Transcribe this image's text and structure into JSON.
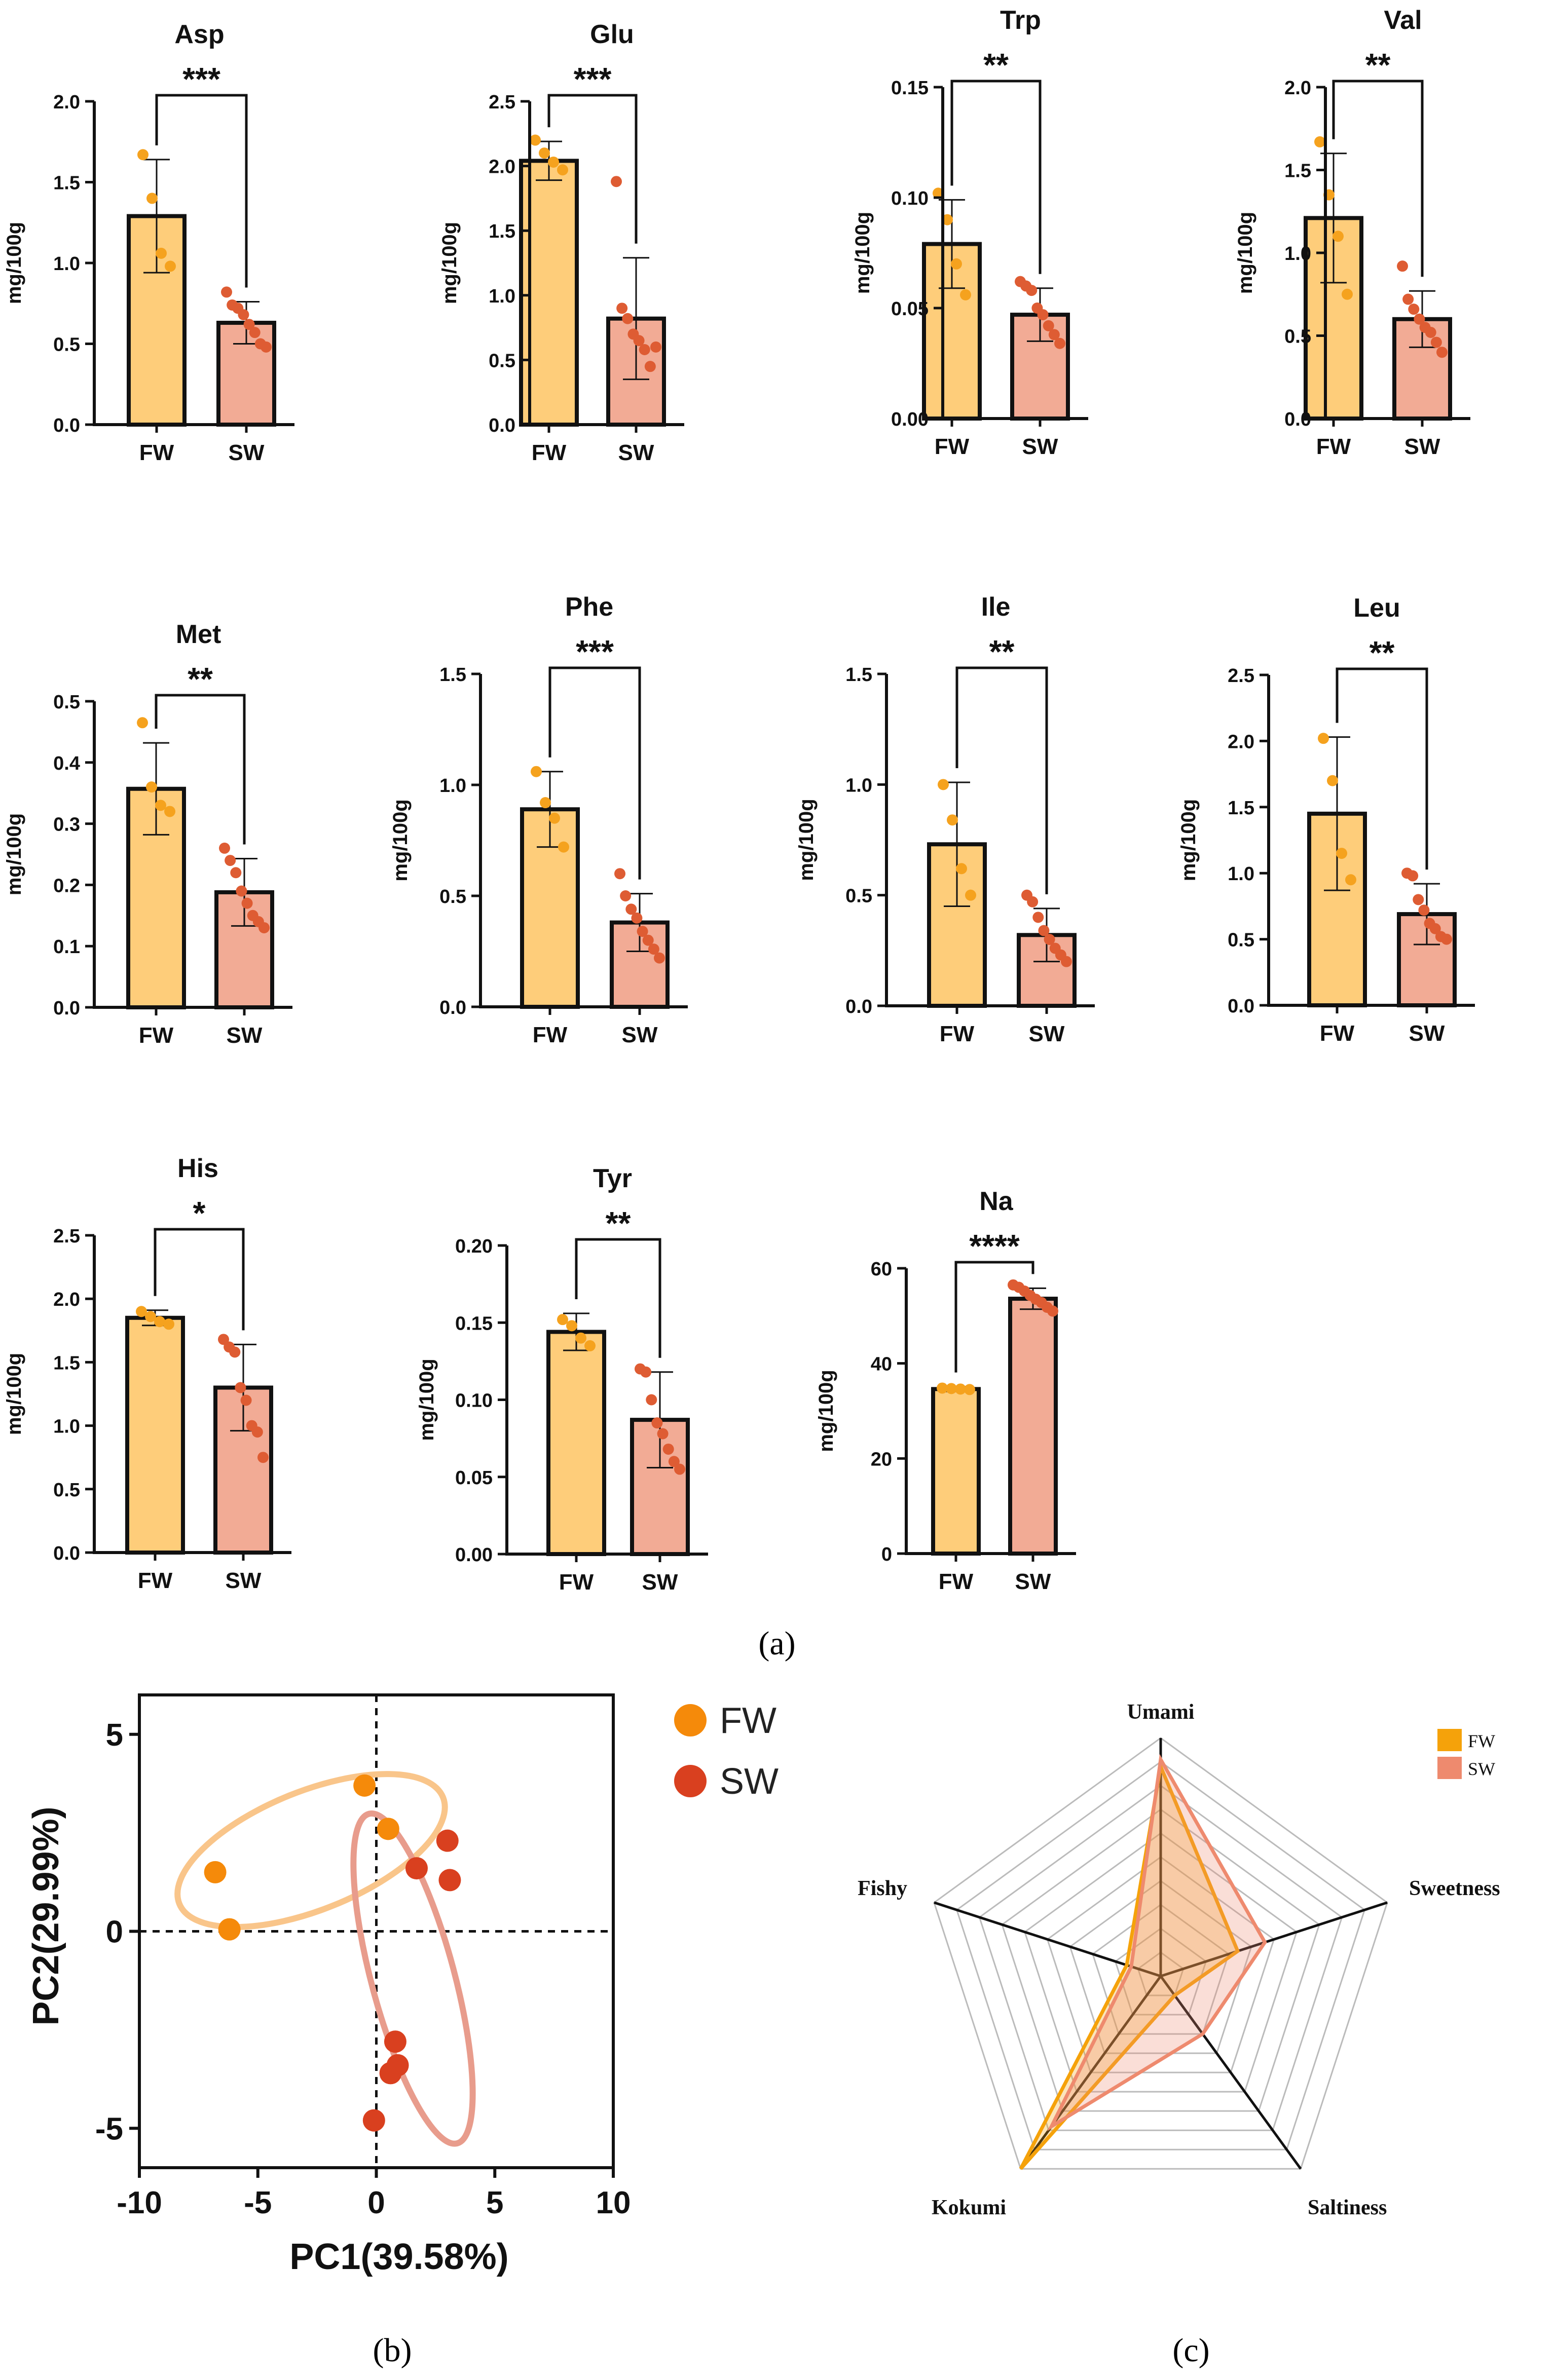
{
  "colors": {
    "fw_bar": "#FECD7A",
    "sw_bar": "#F2AB95",
    "fw_dot": "#F5A21E",
    "sw_dot": "#DE5C33",
    "pca_fw": "#F58A0A",
    "pca_sw": "#D9401F",
    "ellipse_fw": "#F9C58A",
    "ellipse_sw": "#E89C8C",
    "radar_fw": "#F5A20A",
    "radar_sw": "#EE8A6E",
    "axis": "#111111"
  },
  "chart_data": [
    {
      "type": "bar",
      "title": "Asp",
      "ylabel": "mg/100g",
      "categories": [
        "FW",
        "SW"
      ],
      "means": [
        1.29,
        0.63
      ],
      "sd": [
        0.35,
        0.13
      ],
      "ylim": [
        0,
        2.0
      ],
      "yticks": [
        "0.0",
        "0.5",
        "1.0",
        "1.5",
        "2.0"
      ],
      "ytick_values": [
        0,
        0.5,
        1.0,
        1.5,
        2.0
      ],
      "significance": "***",
      "points": [
        [
          1.67,
          1.4,
          1.06,
          0.98
        ],
        [
          0.82,
          0.74,
          0.72,
          0.68,
          0.62,
          0.57,
          0.5,
          0.48
        ]
      ]
    },
    {
      "type": "bar",
      "title": "Glu",
      "ylabel": "mg/100g",
      "categories": [
        "FW",
        "SW"
      ],
      "means": [
        2.04,
        0.82
      ],
      "sd": [
        0.15,
        0.47
      ],
      "ylim": [
        0,
        2.5
      ],
      "yticks": [
        "0.0",
        "0.5",
        "1.0",
        "1.5",
        "2.0",
        "2.5"
      ],
      "ytick_values": [
        0,
        0.5,
        1.0,
        1.5,
        2.0,
        2.5
      ],
      "significance": "***",
      "points": [
        [
          2.2,
          2.1,
          2.03,
          1.97
        ],
        [
          1.88,
          0.9,
          0.82,
          0.7,
          0.65,
          0.58,
          0.45,
          0.6
        ]
      ]
    },
    {
      "type": "bar",
      "title": "Trp",
      "ylabel": "mg/100g",
      "categories": [
        "FW",
        "SW"
      ],
      "means": [
        0.079,
        0.047
      ],
      "sd": [
        0.02,
        0.012
      ],
      "ylim": [
        0,
        0.15
      ],
      "yticks": [
        "0.00",
        "0.05",
        "0.10",
        "0.15"
      ],
      "ytick_values": [
        0,
        0.05,
        0.1,
        0.15
      ],
      "significance": "**",
      "points": [
        [
          0.102,
          0.09,
          0.07,
          0.056
        ],
        [
          0.062,
          0.06,
          0.058,
          0.05,
          0.047,
          0.042,
          0.038,
          0.034
        ]
      ]
    },
    {
      "type": "bar",
      "title": "Val",
      "ylabel": "mg/100g",
      "categories": [
        "FW",
        "SW"
      ],
      "means": [
        1.21,
        0.6
      ],
      "sd": [
        0.39,
        0.17
      ],
      "ylim": [
        0,
        2.0
      ],
      "yticks": [
        "0.0",
        "0.5",
        "1.0",
        "1.5",
        "2.0"
      ],
      "ytick_values": [
        0,
        0.5,
        1.0,
        1.5,
        2.0
      ],
      "significance": "**",
      "points": [
        [
          1.67,
          1.35,
          1.1,
          0.75
        ],
        [
          0.92,
          0.72,
          0.66,
          0.6,
          0.55,
          0.52,
          0.46,
          0.4
        ]
      ]
    },
    {
      "type": "bar",
      "title": "Met",
      "ylabel": "mg/100g",
      "categories": [
        "FW",
        "SW"
      ],
      "means": [
        0.357,
        0.188
      ],
      "sd": [
        0.075,
        0.055
      ],
      "ylim": [
        0,
        0.5
      ],
      "yticks": [
        "0.0",
        "0.1",
        "0.2",
        "0.3",
        "0.4",
        "0.5"
      ],
      "ytick_values": [
        0,
        0.1,
        0.2,
        0.3,
        0.4,
        0.5
      ],
      "significance": "**",
      "points": [
        [
          0.465,
          0.36,
          0.33,
          0.32
        ],
        [
          0.26,
          0.24,
          0.22,
          0.19,
          0.17,
          0.15,
          0.14,
          0.13
        ]
      ]
    },
    {
      "type": "bar",
      "title": "Phe",
      "ylabel": "mg/100g",
      "categories": [
        "FW",
        "SW"
      ],
      "means": [
        0.89,
        0.38
      ],
      "sd": [
        0.17,
        0.13
      ],
      "ylim": [
        0,
        1.5
      ],
      "yticks": [
        "0.0",
        "0.5",
        "1.0",
        "1.5"
      ],
      "ytick_values": [
        0,
        0.5,
        1.0,
        1.5
      ],
      "significance": "***",
      "points": [
        [
          1.06,
          0.92,
          0.85,
          0.72
        ],
        [
          0.6,
          0.5,
          0.44,
          0.4,
          0.34,
          0.3,
          0.26,
          0.22
        ]
      ]
    },
    {
      "type": "bar",
      "title": "Ile",
      "ylabel": "mg/100g",
      "categories": [
        "FW",
        "SW"
      ],
      "means": [
        0.73,
        0.32
      ],
      "sd": [
        0.28,
        0.12
      ],
      "ylim": [
        0,
        1.5
      ],
      "yticks": [
        "0.0",
        "0.5",
        "1.0",
        "1.5"
      ],
      "ytick_values": [
        0,
        0.5,
        1.0,
        1.5
      ],
      "significance": "**",
      "points": [
        [
          1.0,
          0.84,
          0.62,
          0.5
        ],
        [
          0.5,
          0.47,
          0.4,
          0.34,
          0.3,
          0.26,
          0.23,
          0.2
        ]
      ]
    },
    {
      "type": "bar",
      "title": "Leu",
      "ylabel": "mg/100g",
      "categories": [
        "FW",
        "SW"
      ],
      "means": [
        1.45,
        0.69
      ],
      "sd": [
        0.58,
        0.23
      ],
      "ylim": [
        0,
        2.5
      ],
      "yticks": [
        "0.0",
        "0.5",
        "1.0",
        "1.5",
        "2.0",
        "2.5"
      ],
      "ytick_values": [
        0,
        0.5,
        1.0,
        1.5,
        2.0,
        2.5
      ],
      "significance": "**",
      "points": [
        [
          2.02,
          1.7,
          1.15,
          0.95
        ],
        [
          1.0,
          0.98,
          0.8,
          0.72,
          0.62,
          0.58,
          0.52,
          0.5
        ]
      ]
    },
    {
      "type": "bar",
      "title": "His",
      "ylabel": "mg/100g",
      "categories": [
        "FW",
        "SW"
      ],
      "means": [
        1.85,
        1.3
      ],
      "sd": [
        0.06,
        0.34
      ],
      "ylim": [
        0,
        2.5
      ],
      "yticks": [
        "0.0",
        "0.5",
        "1.0",
        "1.5",
        "2.0",
        "2.5"
      ],
      "ytick_values": [
        0,
        0.5,
        1.0,
        1.5,
        2.0,
        2.5
      ],
      "significance": "*",
      "points": [
        [
          1.9,
          1.86,
          1.82,
          1.8
        ],
        [
          1.68,
          1.62,
          1.58,
          1.3,
          1.2,
          1.0,
          0.95,
          0.75
        ]
      ]
    },
    {
      "type": "bar",
      "title": "Tyr",
      "ylabel": "mg/100g",
      "categories": [
        "FW",
        "SW"
      ],
      "means": [
        0.144,
        0.087
      ],
      "sd": [
        0.012,
        0.031
      ],
      "ylim": [
        0,
        0.2
      ],
      "yticks": [
        "0.00",
        "0.05",
        "0.10",
        "0.15",
        "0.20"
      ],
      "ytick_values": [
        0,
        0.05,
        0.1,
        0.15,
        0.2
      ],
      "significance": "**",
      "points": [
        [
          0.152,
          0.148,
          0.14,
          0.135
        ],
        [
          0.12,
          0.118,
          0.1,
          0.085,
          0.078,
          0.068,
          0.06,
          0.055
        ]
      ]
    },
    {
      "type": "bar",
      "title": "Na",
      "ylabel": "mg/100g",
      "categories": [
        "FW",
        "SW"
      ],
      "means": [
        34.6,
        53.6
      ],
      "sd": [
        0.5,
        2.2
      ],
      "ylim": [
        0,
        60
      ],
      "yticks": [
        "0",
        "20",
        "40",
        "60"
      ],
      "ytick_values": [
        0,
        20,
        40,
        60
      ],
      "significance": "****",
      "points": [
        [
          34.8,
          34.7,
          34.6,
          34.5
        ],
        [
          56.5,
          56.0,
          55.2,
          54.3,
          53.5,
          52.8,
          51.8,
          51.0
        ]
      ]
    },
    {
      "type": "scatter",
      "title": "",
      "xlabel": "PC1(39.58%)",
      "ylabel": "PC2(29.99%)",
      "xlim": [
        -10,
        10
      ],
      "ylim": [
        -6,
        6
      ],
      "xticks": [
        "-10",
        "-5",
        "0",
        "5",
        "10"
      ],
      "xtick_values": [
        -10,
        -5,
        0,
        5,
        10
      ],
      "yticks": [
        "-5",
        "0",
        "5"
      ],
      "ytick_values": [
        -5,
        0,
        5
      ],
      "legend": [
        "FW",
        "SW"
      ],
      "series": [
        {
          "name": "FW",
          "points": [
            [
              -0.5,
              3.7
            ],
            [
              0.5,
              2.6
            ],
            [
              -6.8,
              1.5
            ],
            [
              -6.2,
              0.05
            ]
          ]
        },
        {
          "name": "SW",
          "points": [
            [
              3.0,
              2.3
            ],
            [
              3.1,
              1.3
            ],
            [
              1.7,
              1.6
            ],
            [
              0.8,
              -2.8
            ],
            [
              0.9,
              -3.4
            ],
            [
              0.6,
              -3.6
            ],
            [
              -0.1,
              -4.8
            ]
          ]
        }
      ],
      "ellipses": [
        {
          "name": "FW",
          "cx": -2.75,
          "cy": 2.05,
          "rx": 6.0,
          "ry": 2.5,
          "angle_deg": 22
        },
        {
          "name": "SW",
          "cx": 1.55,
          "cy": -1.2,
          "rx": 7.2,
          "ry": 1.75,
          "angle_deg": -75
        }
      ]
    },
    {
      "type": "radar",
      "axes": [
        "Umami",
        "Sweetness",
        "Saltiness",
        "Kokumi",
        "Fishy"
      ],
      "max": 10,
      "rings": 10,
      "legend": [
        "FW",
        "SW"
      ],
      "series": [
        {
          "name": "FW",
          "values": [
            8.8,
            3.4,
            1.0,
            10.0,
            1.5
          ]
        },
        {
          "name": "SW",
          "values": [
            9.1,
            4.6,
            3.0,
            7.8,
            1.3
          ]
        }
      ]
    }
  ],
  "panel_labels": {
    "a": "(a)",
    "b": "(b)",
    "c": "(c)"
  }
}
